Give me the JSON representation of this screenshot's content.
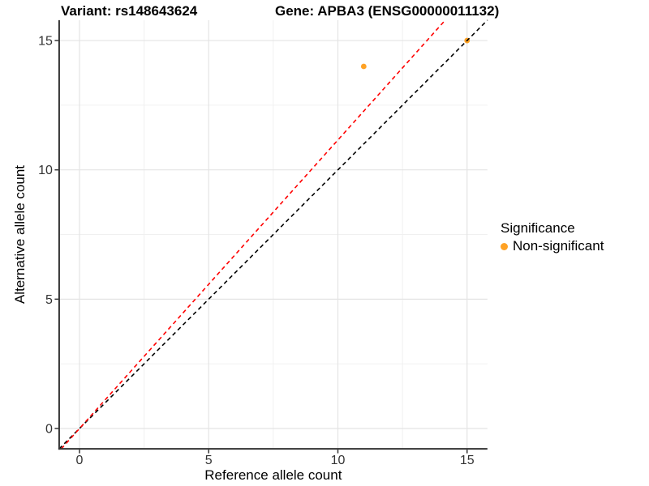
{
  "chart_data": {
    "type": "scatter",
    "title_left": "Variant: rs148643624",
    "title_right": "Gene: APBA3 (ENSG00000011132)",
    "xlabel": "Reference allele count",
    "ylabel": "Alternative allele count",
    "xlim": [
      0,
      15
    ],
    "ylim": [
      0,
      15
    ],
    "axis_expansion": 0.7875,
    "grid": true,
    "ticks": [
      0,
      5,
      10,
      15
    ],
    "minor_ticks": [
      2.5,
      7.5,
      12.5
    ],
    "points": [
      {
        "x": 11,
        "y": 14,
        "significance": "Non-significant"
      },
      {
        "x": 15,
        "y": 15,
        "significance": "Non-significant"
      }
    ],
    "reference_lines": [
      {
        "name": "identity-line",
        "slope": 1,
        "intercept": 0,
        "color": "#000000",
        "dash": true
      },
      {
        "name": "allelic-ratio-line",
        "slope": 1.1154,
        "intercept": 0,
        "color": "#FF0000",
        "dash": true
      }
    ],
    "colors": {
      "grid_major": "#E4E4E4",
      "grid_minor": "#F0F0F0",
      "axis_line": "#333333",
      "tick_label": "#333333",
      "axis_title": "#000000"
    }
  },
  "legend": {
    "title": "Significance",
    "position": "right",
    "items": [
      {
        "label": "Non-significant",
        "color": "#FFA224"
      }
    ]
  }
}
